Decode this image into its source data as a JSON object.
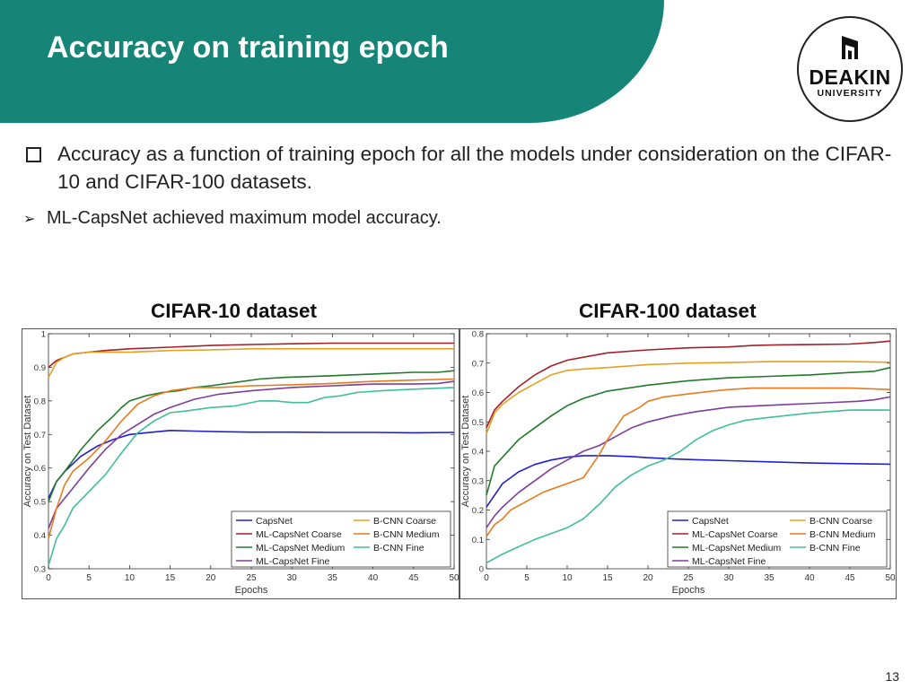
{
  "slide": {
    "title": "Accuracy on training epoch",
    "bullet_main": "Accuracy as a function of training epoch for all the models under consideration on the CIFAR-10 and CIFAR-100 datasets.",
    "bullet_sub": "ML-CapsNet achieved maximum model accuracy.",
    "page_number": "13"
  },
  "logo": {
    "line1": "DEAKIN",
    "line2": "UNIVERSITY"
  },
  "chart_titles": [
    "CIFAR-10 dataset",
    "CIFAR-100 dataset"
  ],
  "chart_data": [
    {
      "type": "line",
      "title": "CIFAR-10 dataset",
      "xlabel": "Epochs",
      "ylabel": "Accuracy on Test Dataset",
      "xlim": [
        0,
        50
      ],
      "ylim": [
        0.3,
        1.0
      ],
      "xticks": [
        0,
        5,
        10,
        15,
        20,
        25,
        30,
        35,
        40,
        45,
        50
      ],
      "yticks": [
        0.3,
        0.4,
        0.5,
        0.6,
        0.7,
        0.8,
        0.9,
        1
      ],
      "ytick_labels": [
        "0.3",
        "0.4",
        "0.5",
        "0.6",
        "0.7",
        "0.8",
        "0.9",
        "1"
      ],
      "grid": false,
      "legend": "bottom-right",
      "series": [
        {
          "name": "CapsNet",
          "color": "#1f1fd2",
          "x": [
            0,
            1,
            2,
            4,
            6,
            8,
            10,
            12,
            15,
            18,
            22,
            25,
            30,
            35,
            40,
            45,
            50
          ],
          "y": [
            0.51,
            0.56,
            0.59,
            0.635,
            0.665,
            0.685,
            0.7,
            0.705,
            0.712,
            0.71,
            0.708,
            0.707,
            0.707,
            0.706,
            0.706,
            0.705,
            0.706
          ]
        },
        {
          "name": "ML-CapsNet Coarse",
          "color": "#a3202a",
          "x": [
            0,
            1,
            2,
            3,
            5,
            7,
            10,
            15,
            20,
            25,
            30,
            35,
            40,
            45,
            50
          ],
          "y": [
            0.9,
            0.92,
            0.93,
            0.94,
            0.945,
            0.95,
            0.955,
            0.96,
            0.965,
            0.968,
            0.97,
            0.972,
            0.972,
            0.972,
            0.972
          ]
        },
        {
          "name": "ML-CapsNet Medium",
          "color": "#217a2b",
          "x": [
            0,
            1,
            2,
            4,
            6,
            8,
            9,
            10,
            12,
            14,
            16,
            18,
            20,
            23,
            26,
            29,
            35,
            40,
            45,
            48,
            50
          ],
          "y": [
            0.5,
            0.56,
            0.59,
            0.655,
            0.71,
            0.755,
            0.78,
            0.8,
            0.815,
            0.825,
            0.83,
            0.84,
            0.845,
            0.855,
            0.865,
            0.87,
            0.875,
            0.88,
            0.885,
            0.885,
            0.89
          ]
        },
        {
          "name": "ML-CapsNet Fine",
          "color": "#7d3e9b",
          "x": [
            0,
            1,
            3,
            5,
            7,
            9,
            11,
            13,
            15,
            18,
            21,
            25,
            30,
            35,
            40,
            45,
            48,
            50
          ],
          "y": [
            0.42,
            0.48,
            0.54,
            0.6,
            0.655,
            0.7,
            0.73,
            0.76,
            0.78,
            0.805,
            0.82,
            0.83,
            0.84,
            0.845,
            0.85,
            0.85,
            0.852,
            0.858
          ]
        },
        {
          "name": "B-CNN Coarse",
          "color": "#e6a020",
          "x": [
            0,
            1,
            2,
            3,
            5,
            7,
            10,
            15,
            20,
            25,
            30,
            35,
            40,
            45,
            50
          ],
          "y": [
            0.87,
            0.915,
            0.93,
            0.94,
            0.945,
            0.945,
            0.945,
            0.95,
            0.952,
            0.955,
            0.955,
            0.955,
            0.955,
            0.955,
            0.955
          ]
        },
        {
          "name": "B-CNN Medium",
          "color": "#e77a1e",
          "x": [
            0,
            1,
            2,
            3,
            5,
            7,
            9,
            11,
            13,
            15,
            18,
            21,
            25,
            30,
            35,
            40,
            45,
            50
          ],
          "y": [
            0.39,
            0.48,
            0.55,
            0.59,
            0.63,
            0.68,
            0.74,
            0.79,
            0.815,
            0.83,
            0.84,
            0.84,
            0.845,
            0.848,
            0.852,
            0.858,
            0.862,
            0.865
          ]
        },
        {
          "name": "B-CNN Fine",
          "color": "#3fbf9a",
          "x": [
            0,
            1,
            2,
            3,
            5,
            7,
            9,
            11,
            13,
            15,
            17,
            20,
            23,
            26,
            28,
            30,
            32,
            34,
            36,
            38,
            41,
            45,
            50
          ],
          "y": [
            0.31,
            0.39,
            0.43,
            0.48,
            0.53,
            0.58,
            0.645,
            0.705,
            0.74,
            0.765,
            0.77,
            0.78,
            0.785,
            0.8,
            0.8,
            0.795,
            0.795,
            0.81,
            0.815,
            0.825,
            0.83,
            0.835,
            0.84
          ]
        }
      ]
    },
    {
      "type": "line",
      "title": "CIFAR-100 dataset",
      "xlabel": "Epochs",
      "ylabel": "Accuracy on Test Dataset",
      "xlim": [
        0,
        50
      ],
      "ylim": [
        0,
        0.8
      ],
      "xticks": [
        0,
        5,
        10,
        15,
        20,
        25,
        30,
        35,
        40,
        45,
        50
      ],
      "yticks": [
        0,
        0.1,
        0.2,
        0.3,
        0.4,
        0.5,
        0.6,
        0.7,
        0.8
      ],
      "ytick_labels": [
        "0",
        "0.1",
        "0.2",
        "0.3",
        "0.4",
        "0.5",
        "0.6",
        "0.7",
        "0.8"
      ],
      "grid": false,
      "legend": "bottom-right",
      "series": [
        {
          "name": "CapsNet",
          "color": "#1f1fd2",
          "x": [
            0,
            1,
            2,
            4,
            6,
            8,
            10,
            12,
            15,
            18,
            20,
            25,
            30,
            35,
            40,
            45,
            50
          ],
          "y": [
            0.21,
            0.25,
            0.29,
            0.33,
            0.355,
            0.37,
            0.38,
            0.385,
            0.385,
            0.382,
            0.378,
            0.372,
            0.368,
            0.364,
            0.36,
            0.358,
            0.356
          ]
        },
        {
          "name": "ML-CapsNet Coarse",
          "color": "#a3202a",
          "x": [
            0,
            1,
            2,
            4,
            6,
            8,
            10,
            12,
            15,
            20,
            25,
            30,
            33,
            36,
            40,
            45,
            48,
            50
          ],
          "y": [
            0.48,
            0.54,
            0.57,
            0.62,
            0.66,
            0.69,
            0.71,
            0.72,
            0.735,
            0.745,
            0.752,
            0.755,
            0.76,
            0.762,
            0.763,
            0.765,
            0.77,
            0.775
          ]
        },
        {
          "name": "ML-CapsNet Medium",
          "color": "#217a2b",
          "x": [
            0,
            1,
            2,
            4,
            6,
            8,
            10,
            12,
            15,
            20,
            25,
            30,
            35,
            40,
            45,
            48,
            50
          ],
          "y": [
            0.25,
            0.35,
            0.38,
            0.44,
            0.48,
            0.52,
            0.555,
            0.58,
            0.605,
            0.625,
            0.64,
            0.65,
            0.655,
            0.66,
            0.668,
            0.672,
            0.685
          ]
        },
        {
          "name": "ML-CapsNet Fine",
          "color": "#7d3e9b",
          "x": [
            0,
            1,
            2,
            4,
            6,
            8,
            10,
            12,
            14,
            16,
            18,
            20,
            23,
            26,
            30,
            34,
            38,
            42,
            46,
            48,
            50
          ],
          "y": [
            0.14,
            0.18,
            0.21,
            0.26,
            0.3,
            0.34,
            0.37,
            0.4,
            0.42,
            0.45,
            0.48,
            0.5,
            0.52,
            0.535,
            0.55,
            0.555,
            0.56,
            0.565,
            0.57,
            0.575,
            0.585
          ]
        },
        {
          "name": "B-CNN Coarse",
          "color": "#e6a020",
          "x": [
            0,
            1,
            2,
            4,
            6,
            8,
            10,
            12,
            15,
            20,
            25,
            30,
            35,
            40,
            45,
            50
          ],
          "y": [
            0.46,
            0.53,
            0.56,
            0.6,
            0.63,
            0.66,
            0.675,
            0.68,
            0.685,
            0.695,
            0.7,
            0.702,
            0.705,
            0.705,
            0.705,
            0.703
          ]
        },
        {
          "name": "B-CNN Medium",
          "color": "#e77a1e",
          "x": [
            0,
            1,
            2,
            3,
            5,
            7,
            9,
            11,
            12,
            13,
            14,
            15,
            17,
            19,
            20,
            22,
            25,
            28,
            30,
            33,
            36,
            40,
            45,
            50
          ],
          "y": [
            0.11,
            0.15,
            0.17,
            0.2,
            0.23,
            0.26,
            0.28,
            0.3,
            0.31,
            0.35,
            0.39,
            0.44,
            0.52,
            0.55,
            0.57,
            0.585,
            0.595,
            0.605,
            0.61,
            0.615,
            0.615,
            0.615,
            0.615,
            0.61
          ]
        },
        {
          "name": "B-CNN Fine",
          "color": "#3fbf9a",
          "x": [
            0,
            1,
            2,
            4,
            6,
            8,
            10,
            12,
            14,
            16,
            18,
            20,
            22,
            24,
            26,
            28,
            30,
            32,
            35,
            40,
            45,
            50
          ],
          "y": [
            0.02,
            0.035,
            0.05,
            0.075,
            0.1,
            0.12,
            0.14,
            0.17,
            0.22,
            0.28,
            0.32,
            0.35,
            0.37,
            0.4,
            0.44,
            0.47,
            0.49,
            0.505,
            0.515,
            0.53,
            0.54,
            0.54
          ]
        }
      ]
    }
  ]
}
